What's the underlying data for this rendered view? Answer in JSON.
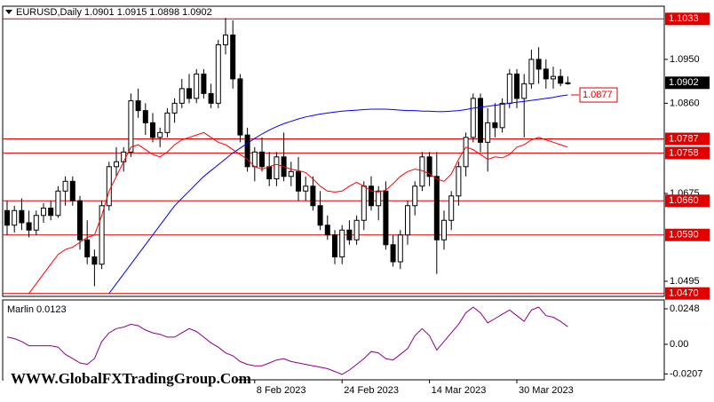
{
  "chart_data": {
    "type": "candlestick",
    "title": "EURUSD,Daily  1.0901 1.0915 1.0898 1.0902",
    "watermark": "WWW.GlobalFXTradingGroup.Com",
    "categories": [
      null,
      null,
      null,
      null,
      null,
      null,
      null,
      null,
      null,
      null,
      null,
      null,
      null,
      null,
      null,
      null,
      null,
      null,
      null,
      null,
      null,
      null,
      null,
      null,
      null,
      null,
      null,
      null,
      null,
      null,
      null,
      null,
      null,
      null,
      "8 Feb 2023",
      null,
      null,
      null,
      null,
      null,
      null,
      null,
      null,
      null,
      null,
      null,
      "24 Feb 2023",
      null,
      null,
      null,
      null,
      null,
      null,
      null,
      null,
      null,
      null,
      null,
      "14 Mar 2023",
      null,
      null,
      null,
      null,
      null,
      null,
      null,
      null,
      null,
      null,
      null,
      "30 Mar 2023",
      null,
      null,
      null,
      null,
      null,
      null,
      null
    ],
    "candles": [
      [
        1.064,
        1.066,
        1.059,
        1.061
      ],
      [
        1.061,
        1.065,
        1.0595,
        1.064
      ],
      [
        1.064,
        1.0665,
        1.06,
        1.0615
      ],
      [
        1.0615,
        1.064,
        1.0585,
        1.06
      ],
      [
        1.06,
        1.064,
        1.059,
        1.063
      ],
      [
        1.063,
        1.0655,
        1.0615,
        1.0645
      ],
      [
        1.0645,
        1.066,
        1.062,
        1.063
      ],
      [
        1.063,
        1.069,
        1.0625,
        1.068
      ],
      [
        1.068,
        1.071,
        1.065,
        1.07
      ],
      [
        1.07,
        1.071,
        1.065,
        1.066
      ],
      [
        1.066,
        1.067,
        1.056,
        1.058
      ],
      [
        1.058,
        1.062,
        1.053,
        1.0545
      ],
      [
        1.0545,
        1.056,
        1.0485,
        1.053
      ],
      [
        1.053,
        1.066,
        1.052,
        1.065
      ],
      [
        1.065,
        1.074,
        1.064,
        1.073
      ],
      [
        1.073,
        1.077,
        1.071,
        1.074
      ],
      [
        1.074,
        1.077,
        1.072,
        1.076
      ],
      [
        1.076,
        1.088,
        1.075,
        1.0865
      ],
      [
        1.0865,
        1.089,
        1.083,
        1.0845
      ],
      [
        1.0845,
        1.086,
        1.0795,
        1.082
      ],
      [
        1.082,
        1.084,
        1.078,
        1.079
      ],
      [
        1.079,
        1.081,
        1.077,
        1.08
      ],
      [
        1.08,
        1.085,
        1.079,
        1.084
      ],
      [
        1.084,
        1.087,
        1.082,
        1.086
      ],
      [
        1.086,
        1.091,
        1.085,
        1.089
      ],
      [
        1.089,
        1.092,
        1.086,
        1.087
      ],
      [
        1.087,
        1.093,
        1.086,
        1.092
      ],
      [
        1.092,
        1.093,
        1.087,
        1.088
      ],
      [
        1.088,
        1.09,
        1.085,
        1.086
      ],
      [
        1.086,
        1.099,
        1.085,
        1.098
      ],
      [
        1.098,
        1.1035,
        1.096,
        1.1
      ],
      [
        1.1,
        1.103,
        1.089,
        1.091
      ],
      [
        1.091,
        1.092,
        1.078,
        1.0795
      ],
      [
        1.0795,
        1.081,
        1.072,
        1.073
      ],
      [
        1.073,
        1.077,
        1.07,
        1.076
      ],
      [
        1.076,
        1.079,
        1.072,
        1.073
      ],
      [
        1.073,
        1.076,
        1.069,
        1.0705
      ],
      [
        1.0705,
        1.076,
        1.069,
        1.075
      ],
      [
        1.075,
        1.08,
        1.07,
        1.071
      ],
      [
        1.071,
        1.074,
        1.069,
        1.072
      ],
      [
        1.072,
        1.075,
        1.066,
        1.068
      ],
      [
        1.068,
        1.071,
        1.066,
        1.069
      ],
      [
        1.069,
        1.071,
        1.064,
        1.065
      ],
      [
        1.065,
        1.068,
        1.06,
        1.061
      ],
      [
        1.061,
        1.063,
        1.058,
        1.059
      ],
      [
        1.059,
        1.06,
        1.053,
        1.0545
      ],
      [
        1.0545,
        1.061,
        1.053,
        1.06
      ],
      [
        1.06,
        1.062,
        1.057,
        1.058
      ],
      [
        1.058,
        1.063,
        1.057,
        1.062
      ],
      [
        1.062,
        1.07,
        1.06,
        1.069
      ],
      [
        1.069,
        1.071,
        1.064,
        1.065
      ],
      [
        1.065,
        1.069,
        1.062,
        1.068
      ],
      [
        1.068,
        1.07,
        1.056,
        1.057
      ],
      [
        1.057,
        1.059,
        1.0525,
        1.0535
      ],
      [
        1.0535,
        1.06,
        1.052,
        1.059
      ],
      [
        1.059,
        1.066,
        1.057,
        1.065
      ],
      [
        1.065,
        1.07,
        1.063,
        1.069
      ],
      [
        1.069,
        1.076,
        1.068,
        1.075
      ],
      [
        1.075,
        1.076,
        1.069,
        1.071
      ],
      [
        1.071,
        1.076,
        1.051,
        1.058
      ],
      [
        1.058,
        1.064,
        1.056,
        1.062
      ],
      [
        1.062,
        1.068,
        1.06,
        1.067
      ],
      [
        1.067,
        1.074,
        1.065,
        1.073
      ],
      [
        1.073,
        1.08,
        1.071,
        1.079
      ],
      [
        1.079,
        1.088,
        1.078,
        1.087
      ],
      [
        1.087,
        1.088,
        1.076,
        1.078
      ],
      [
        1.078,
        1.085,
        1.072,
        1.082
      ],
      [
        1.082,
        1.086,
        1.079,
        1.081
      ],
      [
        1.081,
        1.087,
        1.08,
        1.086
      ],
      [
        1.086,
        1.093,
        1.085,
        1.092
      ],
      [
        1.092,
        1.093,
        1.085,
        1.087
      ],
      [
        1.087,
        1.092,
        1.079,
        1.09
      ],
      [
        1.09,
        1.097,
        1.089,
        1.095
      ],
      [
        1.095,
        1.0975,
        1.09,
        1.093
      ],
      [
        1.093,
        1.095,
        1.089,
        1.091
      ],
      [
        1.091,
        1.0935,
        1.089,
        1.0915
      ],
      [
        1.0915,
        1.093,
        1.0895,
        1.0901
      ],
      [
        1.0901,
        1.0915,
        1.0898,
        1.0902
      ]
    ],
    "moving_averages": [
      {
        "color": "#0000ff",
        "values": [
          null,
          null,
          null,
          null,
          null,
          null,
          null,
          null,
          null,
          null,
          null,
          null,
          null,
          null,
          1.047,
          1.049,
          1.051,
          1.053,
          1.055,
          1.057,
          1.059,
          1.061,
          1.063,
          1.065,
          1.0665,
          1.068,
          1.0695,
          1.071,
          1.0722,
          1.0734,
          1.0746,
          1.0758,
          1.0768,
          1.0778,
          1.0788,
          1.0797,
          1.0805,
          1.0812,
          1.0818,
          1.0823,
          1.0828,
          1.0832,
          1.0835,
          1.0838,
          1.084,
          1.0842,
          1.0844,
          1.0845,
          1.0846,
          1.0847,
          1.0848,
          1.0848,
          1.0848,
          1.0847,
          1.0846,
          1.0845,
          1.0845,
          1.0844,
          1.0844,
          1.0843,
          1.0843,
          1.0844,
          1.0845,
          1.0847,
          1.085,
          1.0852,
          1.0854,
          1.0856,
          1.0858,
          1.086,
          1.0862,
          1.0864,
          1.0866,
          1.0868,
          1.087,
          1.0872,
          1.0875,
          1.0877
        ]
      },
      {
        "color": "#ff0000",
        "values": [
          null,
          null,
          null,
          1.047,
          1.049,
          1.051,
          1.053,
          1.055,
          1.056,
          1.0565,
          1.0575,
          1.0585,
          1.059,
          1.063,
          1.068,
          1.071,
          1.074,
          1.077,
          1.0775,
          1.0765,
          1.0755,
          1.075,
          1.076,
          1.0775,
          1.0785,
          1.079,
          1.0795,
          1.08,
          1.079,
          1.078,
          1.0775,
          1.0765,
          1.0755,
          1.0745,
          1.073,
          1.0725,
          1.073,
          1.0735,
          1.073,
          1.0725,
          1.0722,
          1.0718,
          1.0705,
          1.069,
          1.068,
          1.0678,
          1.068,
          1.069,
          1.0698,
          1.069,
          1.068,
          1.0678,
          1.0682,
          1.0695,
          1.071,
          1.072,
          1.0725,
          1.0722,
          1.0715,
          1.0705,
          1.07,
          1.0715,
          1.0745,
          1.077,
          1.0765,
          1.0755,
          1.0745,
          1.075,
          1.0748,
          1.0755,
          1.077,
          1.0775,
          1.0785,
          1.079,
          1.0785,
          1.078,
          1.0775,
          1.077
        ]
      }
    ],
    "ylim": [
      1.0464,
      1.1059
    ],
    "yticks": [
      {
        "value": 1.095,
        "label": "1.0950"
      },
      {
        "value": 1.086,
        "label": "1.0860"
      },
      1.0675,
      1.0495
    ],
    "levels": [
      1.1033,
      1.0787,
      1.0758,
      {
        "value": 1.066,
        "label": "1.0660"
      },
      {
        "value": 1.059,
        "label": "1.0590"
      },
      {
        "value": 1.047,
        "label": "1.0470"
      }
    ],
    "level_color": "#e00000",
    "current_price": 1.0902,
    "annotation": 1.0877,
    "oscillator": {
      "label": "Marlin 0.0123",
      "color": "#8b008b",
      "values": [
        0.005,
        0.004,
        0.002,
        -0.001,
        -0.001,
        -0.001,
        -0.001,
        -0.002,
        -0.007,
        -0.01,
        -0.013,
        -0.014,
        -0.01,
        0.002,
        0.008,
        0.011,
        0.012,
        0.014,
        0.013,
        0.01,
        0.008,
        0.007,
        0.005,
        0.005,
        0.008,
        0.011,
        0.009,
        0.005,
        0.001,
        -0.002,
        -0.006,
        -0.008,
        -0.012,
        -0.014,
        -0.015,
        -0.015,
        -0.013,
        -0.011,
        -0.01,
        -0.012,
        -0.013,
        -0.014,
        -0.015,
        -0.016,
        -0.017,
        -0.019,
        -0.021,
        -0.018,
        -0.014,
        -0.01,
        -0.005,
        -0.006,
        -0.01,
        -0.011,
        -0.007,
        -0.003,
        0.006,
        0.011,
        0.006,
        -0.004,
        0.002,
        0.008,
        0.014,
        0.022,
        0.026,
        0.022,
        0.015,
        0.018,
        0.021,
        0.024,
        0.02,
        0.016,
        0.024,
        0.026,
        0.02,
        0.019,
        0.016,
        0.0123
      ],
      "ylim": [
        -0.0248,
        0.031
      ],
      "yticks": [
        0.0248,
        {
          "value": 0,
          "label": "0.00"
        },
        -0.0207
      ]
    }
  }
}
